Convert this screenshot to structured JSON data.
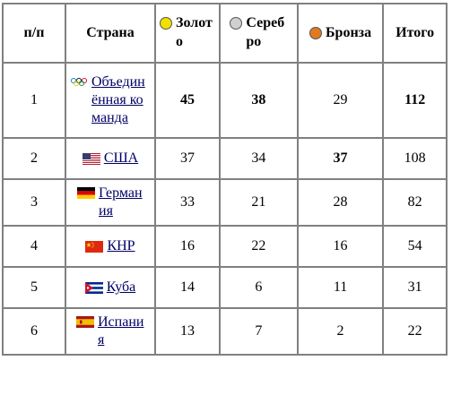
{
  "header": {
    "num": "п/п",
    "country": "Страна",
    "gold": "Золото",
    "silver": "Серебро",
    "bronze": "Бронза",
    "total": "Итого"
  },
  "colors": {
    "gold": "#f2e000",
    "silver": "#d0d0d0",
    "bronze": "#e07a20",
    "link": "#000066",
    "border": "#808080"
  },
  "rows": [
    {
      "num": "1",
      "flag": "olympic-rings-icon",
      "country": "Объединённая команда",
      "gold": "45",
      "silver": "38",
      "bronze": "29",
      "total": "112"
    },
    {
      "num": "2",
      "flag": "usa-flag-icon",
      "country": "США",
      "gold": "37",
      "silver": "34",
      "bronze": "37",
      "total": "108"
    },
    {
      "num": "3",
      "flag": "germany-flag-icon",
      "country": "Германия",
      "gold": "33",
      "silver": "21",
      "bronze": "28",
      "total": "82"
    },
    {
      "num": "4",
      "flag": "china-flag-icon",
      "country": "КНР",
      "gold": "16",
      "silver": "22",
      "bronze": "16",
      "total": "54"
    },
    {
      "num": "5",
      "flag": "cuba-flag-icon",
      "country": "Куба",
      "gold": "14",
      "silver": "6",
      "bronze": "11",
      "total": "31"
    },
    {
      "num": "6",
      "flag": "spain-flag-icon",
      "country": "Испания",
      "gold": "13",
      "silver": "7",
      "bronze": "2",
      "total": "22"
    }
  ]
}
